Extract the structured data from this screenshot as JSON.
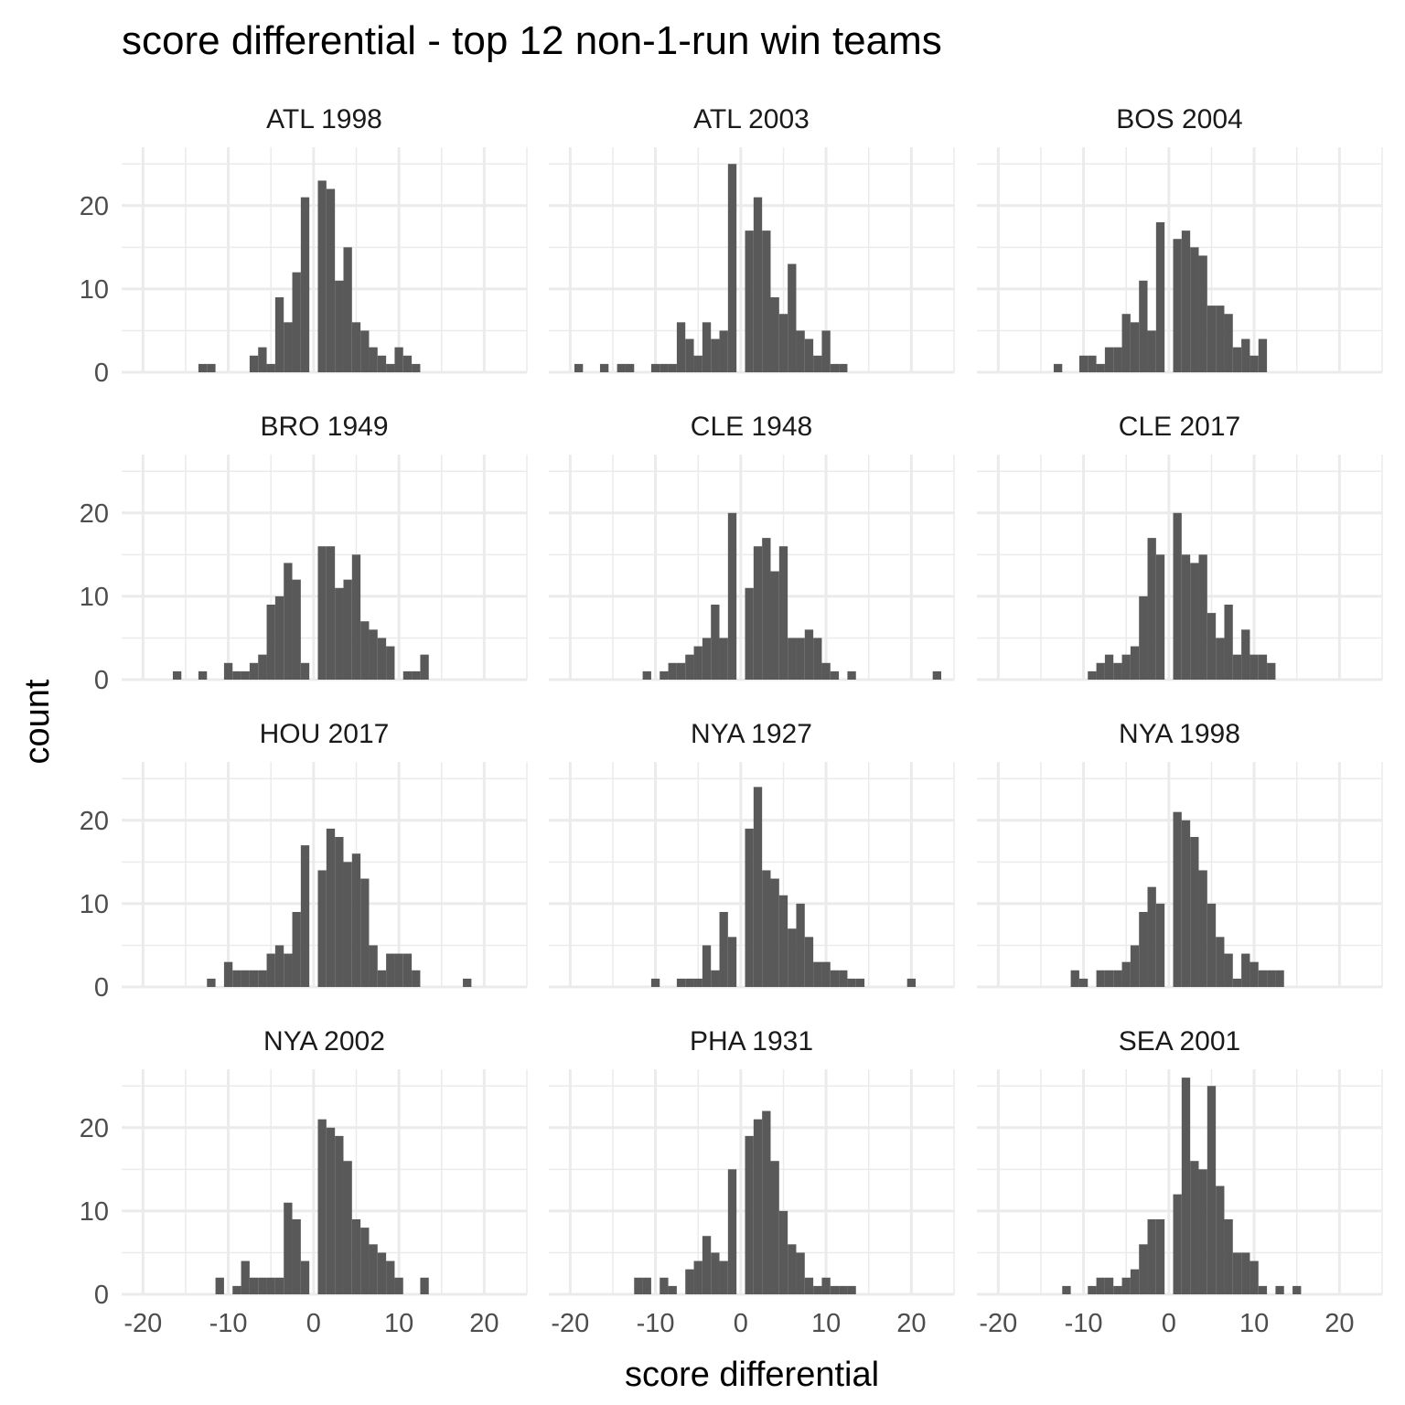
{
  "chart_data": {
    "type": "bar",
    "title": "score differential - top 12 non-1-run win teams",
    "xlabel": "score differential",
    "ylabel": "count",
    "xlim": [
      -22.5,
      25
    ],
    "ylim": [
      0,
      27
    ],
    "x_ticks": [
      -20,
      -10,
      0,
      10,
      20
    ],
    "y_ticks": [
      0,
      10,
      20
    ],
    "bin_width": 1,
    "grid": true,
    "panels": [
      {
        "label": "ATL 1998",
        "x": [
          -13,
          -12,
          -7,
          -6,
          -5,
          -4,
          -3,
          -2,
          -1,
          1,
          2,
          3,
          4,
          5,
          6,
          7,
          8,
          9,
          10,
          11,
          12
        ],
        "values": [
          1,
          1,
          2,
          3,
          1,
          9,
          6,
          12,
          21,
          23,
          22,
          11,
          15,
          6,
          5,
          3,
          2,
          1,
          3,
          2,
          1
        ]
      },
      {
        "label": "ATL 2003",
        "x": [
          -19,
          -16,
          -14,
          -13,
          -10,
          -9,
          -8,
          -7,
          -6,
          -5,
          -4,
          -3,
          -2,
          -1,
          1,
          2,
          3,
          4,
          5,
          6,
          7,
          8,
          9,
          10,
          11,
          12
        ],
        "values": [
          1,
          1,
          1,
          1,
          1,
          1,
          1,
          6,
          4,
          2,
          6,
          4,
          5,
          25,
          17,
          21,
          17,
          9,
          7,
          13,
          5,
          4,
          2,
          5,
          1,
          1
        ]
      },
      {
        "label": "BOS 2004",
        "x": [
          -13,
          -10,
          -9,
          -8,
          -7,
          -6,
          -5,
          -4,
          -3,
          -2,
          -1,
          1,
          2,
          3,
          4,
          5,
          6,
          7,
          8,
          9,
          10,
          11
        ],
        "values": [
          1,
          2,
          2,
          1,
          3,
          3,
          7,
          6,
          11,
          5,
          18,
          16,
          17,
          15,
          14,
          8,
          8,
          7,
          3,
          4,
          2,
          4
        ]
      },
      {
        "label": "BRO 1949",
        "x": [
          -16,
          -13,
          -10,
          -9,
          -8,
          -7,
          -6,
          -5,
          -4,
          -3,
          -2,
          -1,
          1,
          2,
          3,
          4,
          5,
          6,
          7,
          8,
          9,
          11,
          12,
          13
        ],
        "values": [
          1,
          1,
          2,
          1,
          1,
          2,
          3,
          9,
          10,
          14,
          12,
          2,
          16,
          16,
          11,
          12,
          15,
          7,
          6,
          5,
          4,
          1,
          1,
          3
        ]
      },
      {
        "label": "CLE 1948",
        "x": [
          -11,
          -9,
          -8,
          -7,
          -6,
          -5,
          -4,
          -3,
          -2,
          -1,
          1,
          2,
          3,
          4,
          5,
          6,
          7,
          8,
          9,
          10,
          11,
          13,
          23
        ],
        "values": [
          1,
          1,
          2,
          2,
          3,
          4,
          5,
          9,
          5,
          20,
          11,
          16,
          17,
          13,
          16,
          5,
          5,
          6,
          5,
          2,
          1,
          1,
          1
        ]
      },
      {
        "label": "CLE 2017",
        "x": [
          -9,
          -8,
          -7,
          -6,
          -5,
          -4,
          -3,
          -2,
          -1,
          1,
          2,
          3,
          4,
          5,
          6,
          7,
          8,
          9,
          10,
          11,
          12
        ],
        "values": [
          1,
          2,
          3,
          2,
          3,
          4,
          10,
          17,
          15,
          20,
          15,
          14,
          15,
          8,
          5,
          9,
          3,
          6,
          3,
          3,
          2
        ]
      },
      {
        "label": "HOU 2017",
        "x": [
          -12,
          -10,
          -9,
          -8,
          -7,
          -6,
          -5,
          -4,
          -3,
          -2,
          -1,
          1,
          2,
          3,
          4,
          5,
          6,
          7,
          8,
          9,
          10,
          11,
          12,
          18
        ],
        "values": [
          1,
          3,
          2,
          2,
          2,
          2,
          4,
          5,
          4,
          9,
          17,
          14,
          19,
          18,
          15,
          16,
          13,
          5,
          2,
          4,
          4,
          4,
          2,
          1
        ]
      },
      {
        "label": "NYA 1927",
        "x": [
          -10,
          -7,
          -6,
          -5,
          -4,
          -3,
          -2,
          -1,
          1,
          2,
          3,
          4,
          5,
          6,
          7,
          8,
          9,
          10,
          11,
          12,
          13,
          14,
          20
        ],
        "values": [
          1,
          1,
          1,
          1,
          5,
          2,
          9,
          6,
          19,
          24,
          14,
          13,
          11,
          7,
          10,
          6,
          3,
          3,
          2,
          2,
          1,
          1,
          1
        ]
      },
      {
        "label": "NYA 1998",
        "x": [
          -11,
          -10,
          -8,
          -7,
          -6,
          -5,
          -4,
          -3,
          -2,
          -1,
          1,
          2,
          3,
          4,
          5,
          6,
          7,
          8,
          9,
          10,
          11,
          12,
          13
        ],
        "values": [
          2,
          1,
          2,
          2,
          2,
          3,
          5,
          9,
          12,
          10,
          21,
          20,
          18,
          14,
          10,
          6,
          4,
          1,
          4,
          3,
          2,
          2,
          2
        ]
      },
      {
        "label": "NYA 2002",
        "x": [
          -11,
          -9,
          -8,
          -7,
          -6,
          -5,
          -4,
          -3,
          -2,
          -1,
          1,
          2,
          3,
          4,
          5,
          6,
          7,
          8,
          9,
          10,
          13
        ],
        "values": [
          2,
          1,
          4,
          2,
          2,
          2,
          2,
          11,
          9,
          4,
          21,
          20,
          19,
          16,
          9,
          8,
          6,
          5,
          4,
          2,
          2
        ]
      },
      {
        "label": "PHA 1931",
        "x": [
          -12,
          -11,
          -9,
          -8,
          -6,
          -5,
          -4,
          -3,
          -2,
          -1,
          1,
          2,
          3,
          4,
          5,
          6,
          7,
          8,
          9,
          10,
          11,
          12,
          13
        ],
        "values": [
          2,
          2,
          2,
          1,
          3,
          4,
          7,
          5,
          4,
          15,
          19,
          21,
          22,
          16,
          10,
          6,
          5,
          2,
          1,
          2,
          1,
          1,
          1
        ]
      },
      {
        "label": "SEA 2001",
        "x": [
          -12,
          -9,
          -8,
          -7,
          -6,
          -5,
          -4,
          -3,
          -2,
          -1,
          1,
          2,
          3,
          4,
          5,
          6,
          7,
          8,
          9,
          10,
          11,
          13,
          15
        ],
        "values": [
          1,
          1,
          2,
          2,
          1,
          2,
          3,
          6,
          9,
          9,
          12,
          26,
          16,
          15,
          25,
          13,
          9,
          5,
          5,
          4,
          1,
          1,
          1
        ]
      }
    ]
  }
}
